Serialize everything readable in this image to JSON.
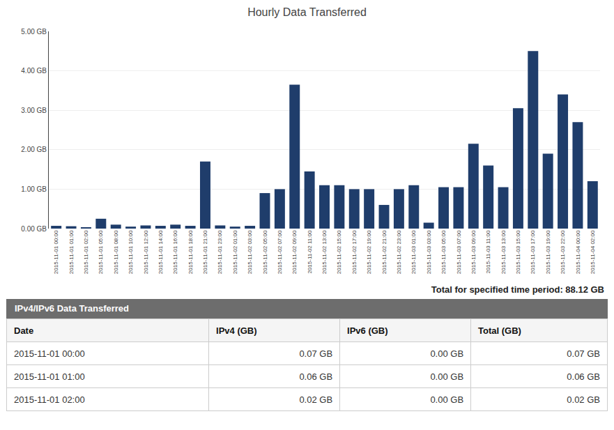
{
  "chart_data": {
    "type": "bar",
    "title": "Hourly Data Transferred",
    "categories": [
      "2015-11-01 00:00",
      "2015-11-01 01:00",
      "2015-11-01 02:00",
      "2015-11-01 05:00",
      "2015-11-01 08:00",
      "2015-11-01 10:00",
      "2015-11-01 12:00",
      "2015-11-01 14:00",
      "2015-11-01 16:00",
      "2015-11-01 18:00",
      "2015-11-01 21:00",
      "2015-11-01 23:00",
      "2015-11-02 01:00",
      "2015-11-02 03:00",
      "2015-11-02 05:00",
      "2015-11-02 07:00",
      "2015-11-02 09:00",
      "2015-11-02 11:00",
      "2015-11-02 13:00",
      "2015-11-02 15:00",
      "2015-11-02 17:00",
      "2015-11-02 19:00",
      "2015-11-02 21:00",
      "2015-11-02 23:00",
      "2015-11-03 01:00",
      "2015-11-03 03:00",
      "2015-11-03 05:00",
      "2015-11-03 07:00",
      "2015-11-03 09:00",
      "2015-11-03 11:00",
      "2015-11-03 13:00",
      "2015-11-03 15:00",
      "2015-11-03 17:00",
      "2015-11-03 19:00",
      "2015-11-03 22:00",
      "2015-11-04 00:00",
      "2015-11-04 02:00"
    ],
    "values": [
      0.07,
      0.06,
      0.02,
      0.25,
      0.1,
      0.05,
      0.08,
      0.07,
      0.1,
      0.07,
      1.7,
      0.08,
      0.05,
      0.07,
      0.9,
      1.0,
      3.65,
      1.45,
      1.1,
      1.1,
      1.0,
      1.0,
      0.6,
      1.0,
      1.1,
      0.15,
      1.05,
      1.05,
      2.15,
      1.6,
      1.05,
      3.05,
      4.5,
      1.9,
      3.4,
      2.7,
      1.2
    ],
    "color": "#1f3d6b",
    "ylim": [
      0,
      5.0
    ],
    "yticks": [
      {
        "value": 0.0,
        "label": "0.00 GB"
      },
      {
        "value": 1.0,
        "label": "1.00 GB"
      },
      {
        "value": 2.0,
        "label": "2.00 GB"
      },
      {
        "value": 3.0,
        "label": "3.00 GB"
      },
      {
        "value": 4.0,
        "label": "4.00 GB"
      },
      {
        "value": 5.0,
        "label": "5.00 GB"
      }
    ],
    "grid": true,
    "annotations": [
      "Total for specified time period: 88.12 GB",
      "IPv4/IPv6 Data Transferred"
    ],
    "table": {
      "headers": [
        "Date",
        "IPv4 (GB)",
        "IPv6 (GB)",
        "Total (GB)"
      ],
      "rows": [
        [
          "2015-11-01 00:00",
          "0.07 GB",
          "0.00 GB",
          "0.07 GB"
        ],
        [
          "2015-11-01 01:00",
          "0.06 GB",
          "0.00 GB",
          "0.06 GB"
        ],
        [
          "2015-11-01 02:00",
          "0.02 GB",
          "0.00 GB",
          "0.02 GB"
        ]
      ]
    }
  }
}
